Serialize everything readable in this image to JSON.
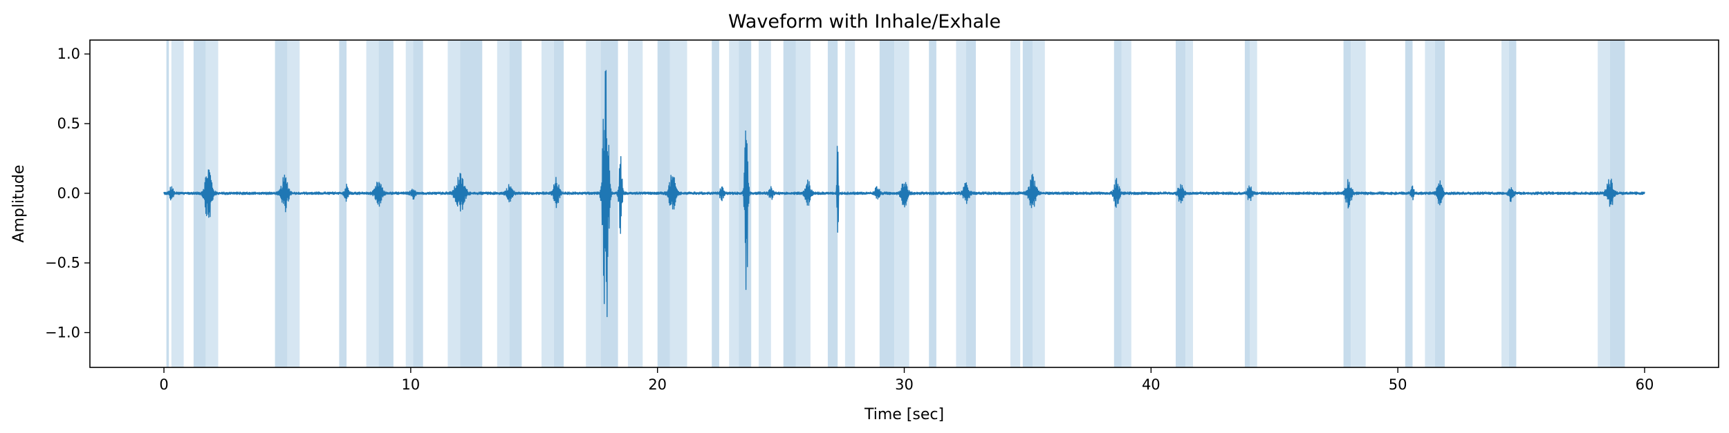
{
  "chart_data": {
    "type": "line",
    "title": "Waveform with Inhale/Exhale",
    "xlabel": "Time [sec]",
    "ylabel": "Amplitude",
    "xlim": [
      -3,
      63
    ],
    "ylim": [
      -1.25,
      1.1
    ],
    "xticks": [
      0,
      10,
      20,
      30,
      40,
      50,
      60
    ],
    "yticks": [
      -1.0,
      -0.5,
      0.0,
      0.5,
      1.0
    ],
    "ytick_labels": [
      "−1.0",
      "−0.5",
      "0.0",
      "0.5",
      "1.0"
    ],
    "grid": false,
    "colors": {
      "line": "#1f77b4",
      "band": "#c7dcec",
      "band_light": "#d6e6f2"
    },
    "series": [
      {
        "x_range": [
          0,
          60
        ],
        "bursts": [
          {
            "t": 0.3,
            "amp": 0.05,
            "w": 0.25
          },
          {
            "t": 1.8,
            "amp": 0.21,
            "w": 0.45
          },
          {
            "t": 4.9,
            "amp": 0.13,
            "w": 0.45
          },
          {
            "t": 7.4,
            "amp": 0.06,
            "w": 0.25
          },
          {
            "t": 8.7,
            "amp": 0.09,
            "w": 0.45
          },
          {
            "t": 10.1,
            "amp": 0.04,
            "w": 0.3
          },
          {
            "t": 12.0,
            "amp": 0.14,
            "w": 0.6
          },
          {
            "t": 14.0,
            "amp": 0.06,
            "w": 0.4
          },
          {
            "t": 15.9,
            "amp": 0.11,
            "w": 0.35
          },
          {
            "t": 17.9,
            "amp": 1.15,
            "w": 0.35
          },
          {
            "t": 18.5,
            "amp": 0.3,
            "w": 0.2
          },
          {
            "t": 20.6,
            "amp": 0.14,
            "w": 0.45
          },
          {
            "t": 22.6,
            "amp": 0.05,
            "w": 0.25
          },
          {
            "t": 23.6,
            "amp": 0.8,
            "w": 0.2
          },
          {
            "t": 24.6,
            "amp": 0.05,
            "w": 0.25
          },
          {
            "t": 26.1,
            "amp": 0.1,
            "w": 0.35
          },
          {
            "t": 27.3,
            "amp": 0.6,
            "w": 0.08
          },
          {
            "t": 28.9,
            "amp": 0.05,
            "w": 0.3
          },
          {
            "t": 30.0,
            "amp": 0.1,
            "w": 0.4
          },
          {
            "t": 32.5,
            "amp": 0.07,
            "w": 0.4
          },
          {
            "t": 35.2,
            "amp": 0.13,
            "w": 0.45
          },
          {
            "t": 38.6,
            "amp": 0.1,
            "w": 0.35
          },
          {
            "t": 41.2,
            "amp": 0.07,
            "w": 0.35
          },
          {
            "t": 44.0,
            "amp": 0.06,
            "w": 0.3
          },
          {
            "t": 48.0,
            "amp": 0.1,
            "w": 0.4
          },
          {
            "t": 50.6,
            "amp": 0.05,
            "w": 0.2
          },
          {
            "t": 51.7,
            "amp": 0.09,
            "w": 0.35
          },
          {
            "t": 54.6,
            "amp": 0.06,
            "w": 0.3
          },
          {
            "t": 58.6,
            "amp": 0.11,
            "w": 0.45
          }
        ],
        "baseline_noise": 0.012
      }
    ],
    "shaded_intervals": [
      [
        0.1,
        0.2
      ],
      [
        0.3,
        0.8
      ],
      [
        1.2,
        1.7
      ],
      [
        1.7,
        2.2
      ],
      [
        4.5,
        5.0
      ],
      [
        5.0,
        5.5
      ],
      [
        7.1,
        7.4
      ],
      [
        8.2,
        8.7
      ],
      [
        8.7,
        9.3
      ],
      [
        9.8,
        10.1
      ],
      [
        10.1,
        10.5
      ],
      [
        11.5,
        12.0
      ],
      [
        12.0,
        12.9
      ],
      [
        13.5,
        14.0
      ],
      [
        14.0,
        14.5
      ],
      [
        15.3,
        15.8
      ],
      [
        15.8,
        16.2
      ],
      [
        17.1,
        17.7
      ],
      [
        17.7,
        18.4
      ],
      [
        18.8,
        19.4
      ],
      [
        20.0,
        20.5
      ],
      [
        20.5,
        21.2
      ],
      [
        22.2,
        22.5
      ],
      [
        22.9,
        23.3
      ],
      [
        23.3,
        23.8
      ],
      [
        24.1,
        24.6
      ],
      [
        25.1,
        25.6
      ],
      [
        25.6,
        26.2
      ],
      [
        26.9,
        27.3
      ],
      [
        27.6,
        28.0
      ],
      [
        29.0,
        29.6
      ],
      [
        29.6,
        30.2
      ],
      [
        31.0,
        31.3
      ],
      [
        32.1,
        32.5
      ],
      [
        32.5,
        32.9
      ],
      [
        34.3,
        34.7
      ],
      [
        34.8,
        35.2
      ],
      [
        35.2,
        35.7
      ],
      [
        38.5,
        38.8
      ],
      [
        38.8,
        39.2
      ],
      [
        41.0,
        41.4
      ],
      [
        41.4,
        41.7
      ],
      [
        43.8,
        44.0
      ],
      [
        44.0,
        44.3
      ],
      [
        47.8,
        48.1
      ],
      [
        48.1,
        48.7
      ],
      [
        50.3,
        50.6
      ],
      [
        51.1,
        51.5
      ],
      [
        51.5,
        51.9
      ],
      [
        54.2,
        54.5
      ],
      [
        54.5,
        54.8
      ],
      [
        58.1,
        58.6
      ],
      [
        58.6,
        59.2
      ]
    ]
  }
}
